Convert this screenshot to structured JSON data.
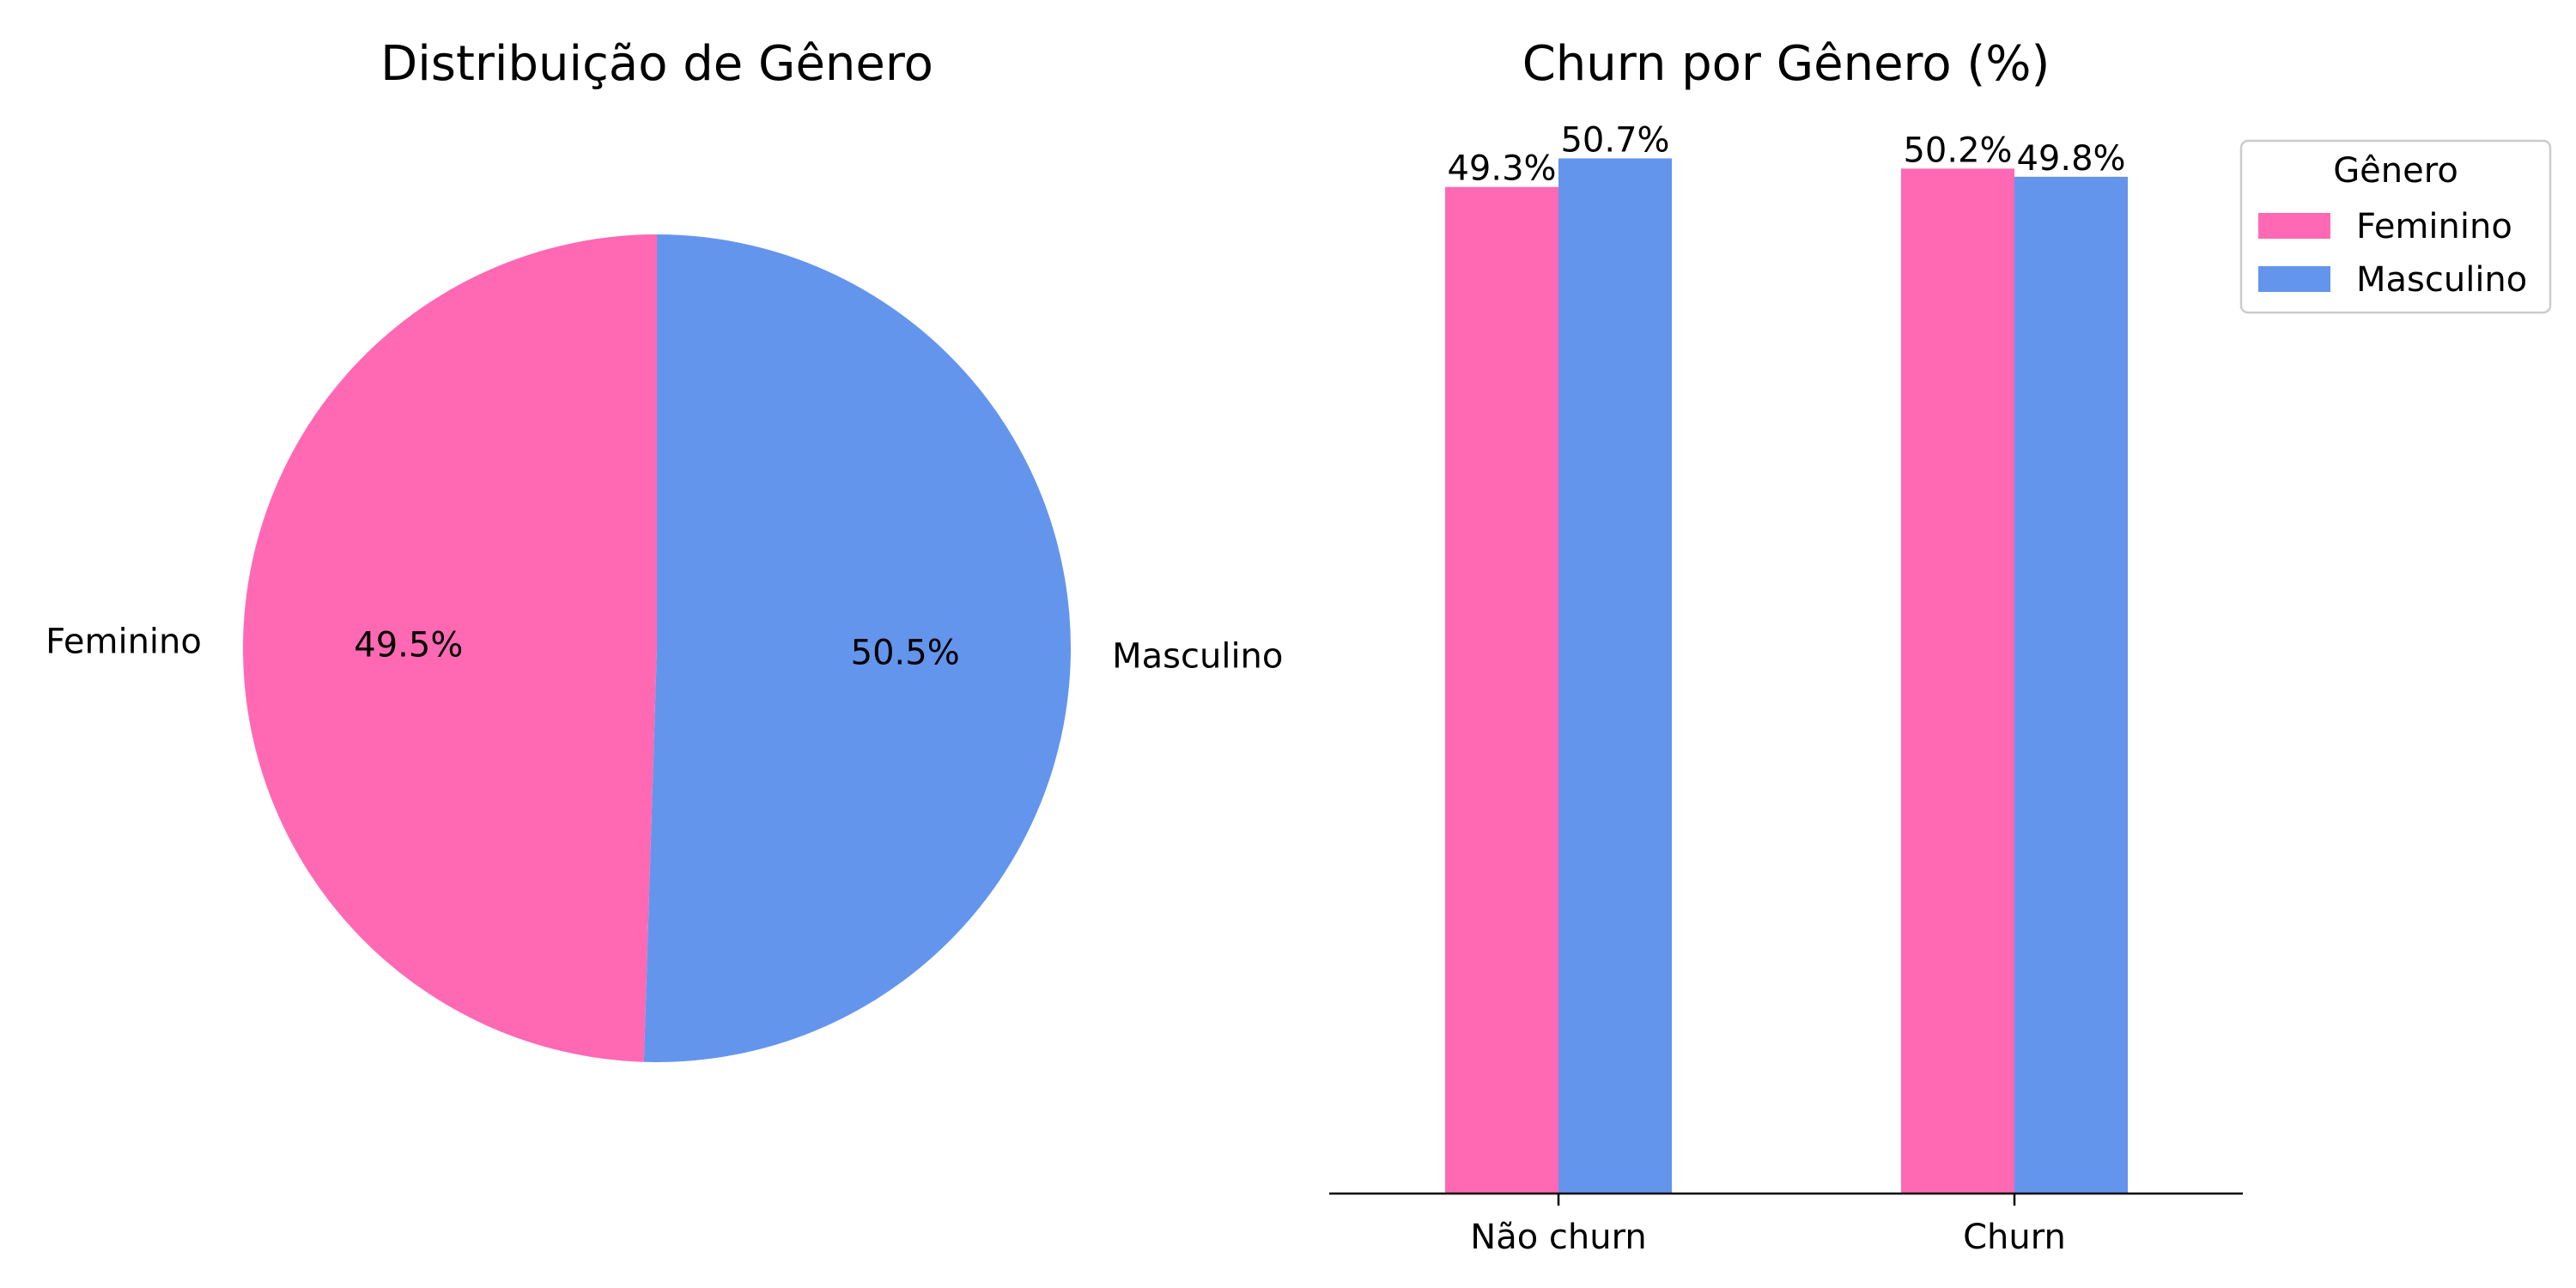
{
  "chart_data": [
    {
      "type": "pie",
      "title": "Distribuição de Gênero",
      "labels": [
        "Feminino",
        "Masculino"
      ],
      "values": [
        49.5,
        50.5
      ],
      "value_labels": [
        "49.5%",
        "50.5%"
      ],
      "colors": [
        "#ff69b4",
        "#6495ed"
      ],
      "start_angle_deg": 90,
      "direction": "counterclockwise"
    },
    {
      "type": "bar",
      "title": "Churn por Gênero (%)",
      "categories": [
        "Não churn",
        "Churn"
      ],
      "series": [
        {
          "name": "Feminino",
          "values": [
            49.3,
            50.2
          ],
          "value_labels": [
            "49.3%",
            "50.2%"
          ],
          "color": "#ff69b4"
        },
        {
          "name": "Masculino",
          "values": [
            50.7,
            49.8
          ],
          "value_labels": [
            "50.7%",
            "49.8%"
          ],
          "color": "#6495ed"
        }
      ],
      "ylim": [
        0,
        53.2
      ],
      "xlabel": "",
      "ylabel": "",
      "grid": false,
      "legend": {
        "title": "Gênero",
        "placement": "outside-top-right"
      }
    }
  ]
}
